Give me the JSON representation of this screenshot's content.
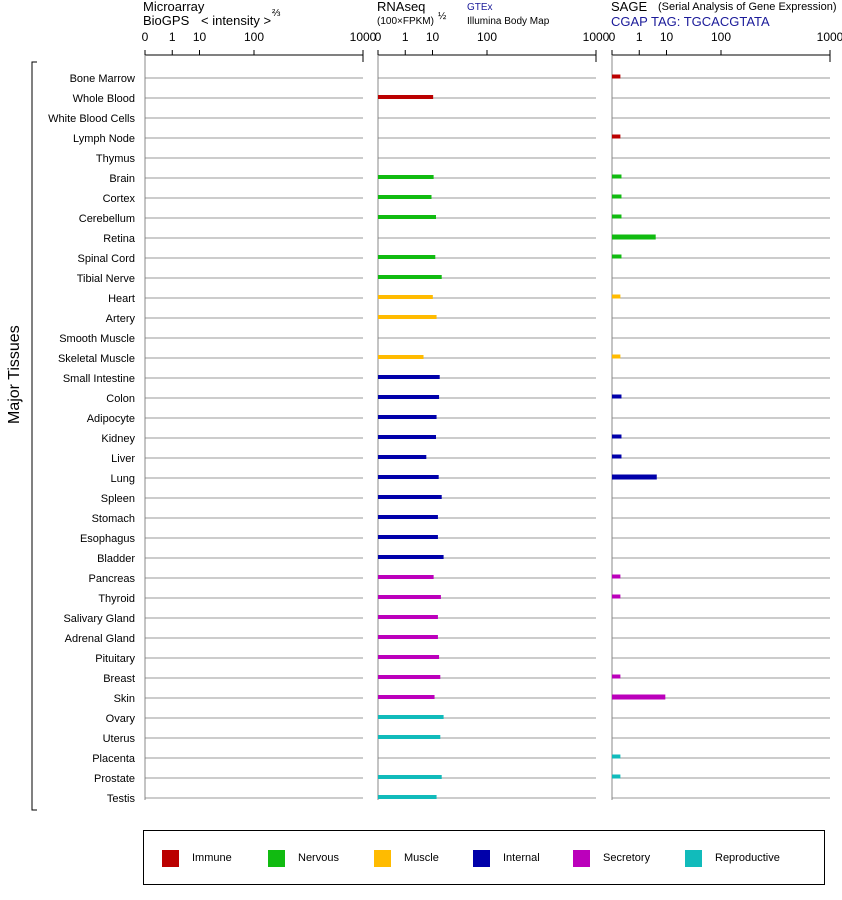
{
  "headers": {
    "microarray_title": "Microarray",
    "microarray_sub": "BioGPS",
    "microarray_intensity": "< intensity >",
    "microarray_exp": "⅔",
    "rnaseq_title": "RNAseq",
    "rnaseq_sub": "(100×FPKM)",
    "rnaseq_exp": "½",
    "gtex_link": "GTEx",
    "illumina_link": "Illumina Body Map",
    "sage_title": "SAGE",
    "sage_sub": "(Serial Analysis of Gene Expression)",
    "sage_tag": "CGAP TAG: TGCACGTATA"
  },
  "y_axis_label": "Major Tissues",
  "colors": {
    "Immune": "#bb0000",
    "Nervous": "#11bb11",
    "Muscle": "#ffbb00",
    "Internal": "#0000aa",
    "Secretory": "#bb00bb",
    "Reproductive": "#11bbbb"
  },
  "legend": [
    {
      "label": "Immune",
      "color": "#bb0000"
    },
    {
      "label": "Nervous",
      "color": "#11bb11"
    },
    {
      "label": "Muscle",
      "color": "#ffbb00"
    },
    {
      "label": "Internal",
      "color": "#0000aa"
    },
    {
      "label": "Secretory",
      "color": "#bb00bb"
    },
    {
      "label": "Reproductive",
      "color": "#11bbbb"
    }
  ],
  "chart_data": {
    "type": "bar",
    "orientation": "horizontal",
    "scale": "root (ticks 0, 1, 10, 100, 1000)",
    "ticks": [
      "0",
      "1",
      "10",
      "100",
      "1000"
    ],
    "tick_values": [
      0,
      1,
      10,
      100,
      1000
    ],
    "categories": [
      "Bone Marrow",
      "Whole Blood",
      "White Blood Cells",
      "Lymph Node",
      "Thymus",
      "Brain",
      "Cortex",
      "Cerebellum",
      "Retina",
      "Spinal Cord",
      "Tibial Nerve",
      "Heart",
      "Artery",
      "Smooth Muscle",
      "Skeletal Muscle",
      "Small Intestine",
      "Colon",
      "Adipocyte",
      "Kidney",
      "Liver",
      "Lung",
      "Spleen",
      "Stomach",
      "Esophagus",
      "Bladder",
      "Pancreas",
      "Thyroid",
      "Salivary Gland",
      "Adrenal Gland",
      "Pituitary",
      "Breast",
      "Skin",
      "Ovary",
      "Uterus",
      "Placenta",
      "Prostate",
      "Testis"
    ],
    "groups": [
      "Immune",
      "Immune",
      "Immune",
      "Immune",
      "Immune",
      "Nervous",
      "Nervous",
      "Nervous",
      "Nervous",
      "Nervous",
      "Nervous",
      "Muscle",
      "Muscle",
      "Muscle",
      "Muscle",
      "Internal",
      "Internal",
      "Internal",
      "Internal",
      "Internal",
      "Internal",
      "Internal",
      "Internal",
      "Internal",
      "Internal",
      "Secretory",
      "Secretory",
      "Secretory",
      "Secretory",
      "Secretory",
      "Secretory",
      "Secretory",
      "Reproductive",
      "Reproductive",
      "Reproductive",
      "Reproductive",
      "Reproductive"
    ],
    "series": [
      {
        "name": "Microarray",
        "values": [
          0,
          0,
          0,
          0,
          0,
          0,
          0,
          0,
          0,
          0,
          0,
          0,
          0,
          0,
          0,
          0,
          0,
          0,
          0,
          0,
          0,
          0,
          0,
          0,
          0,
          0,
          0,
          0,
          0,
          0,
          0,
          0,
          0,
          0,
          0,
          0,
          0
        ]
      },
      {
        "name": "RNAseq",
        "values": [
          0,
          10.4,
          0,
          0,
          0,
          10.7,
          9.4,
          12.3,
          0,
          11.8,
          16.8,
          10.2,
          12.7,
          0,
          5.5,
          15.1,
          14.6,
          12.7,
          12.3,
          6.7,
          14.3,
          16.8,
          13.7,
          13.7,
          18.5,
          10.7,
          16.1,
          13.7,
          13.7,
          14.6,
          15.6,
          11.3,
          18.5,
          15.6,
          0,
          16.8,
          12.7
        ]
      },
      {
        "name": "SAGE",
        "values": [
          0.02,
          0,
          0,
          0.02,
          0,
          0.03,
          0.03,
          0.03,
          4.8,
          0.03,
          0,
          0.02,
          0,
          0,
          0.02,
          0,
          0.03,
          0,
          0.03,
          0.03,
          5.2,
          0,
          0,
          0,
          0,
          0.02,
          0.02,
          0,
          0,
          0,
          0.02,
          9.3,
          0,
          0,
          0.02,
          0.02,
          0
        ]
      }
    ]
  }
}
